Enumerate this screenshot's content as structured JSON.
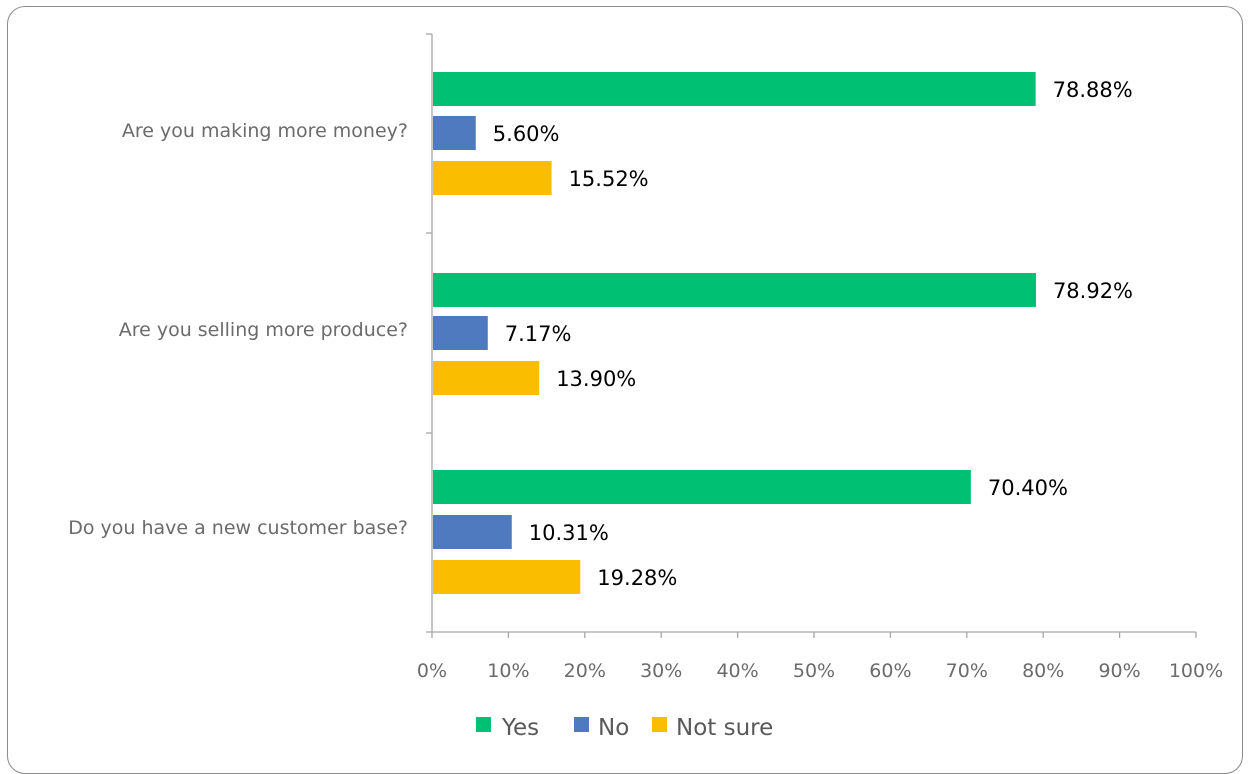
{
  "chart_data": {
    "type": "bar",
    "orientation": "horizontal",
    "categories": [
      "Are you making more money?",
      "Are you selling more produce?",
      "Do you have a new customer base?"
    ],
    "series": [
      {
        "name": "Yes",
        "values": [
          78.88,
          78.92,
          70.4
        ],
        "labels": [
          "78.88%",
          "78.92%",
          "70.40%"
        ],
        "color": "#00c073"
      },
      {
        "name": "No",
        "values": [
          5.6,
          7.17,
          10.31
        ],
        "labels": [
          "5.60%",
          "7.17%",
          "10.31%"
        ],
        "color": "#4f7ac0"
      },
      {
        "name": "Not sure",
        "values": [
          15.52,
          13.9,
          19.28
        ],
        "labels": [
          "15.52%",
          "13.90%",
          "19.28%"
        ],
        "color": "#fbbd00"
      }
    ],
    "xlim": [
      0,
      100
    ],
    "x_ticks": [
      "0%",
      "10%",
      "20%",
      "30%",
      "40%",
      "50%",
      "60%",
      "70%",
      "80%",
      "90%",
      "100%"
    ],
    "grid": false,
    "legend_position": "bottom"
  }
}
